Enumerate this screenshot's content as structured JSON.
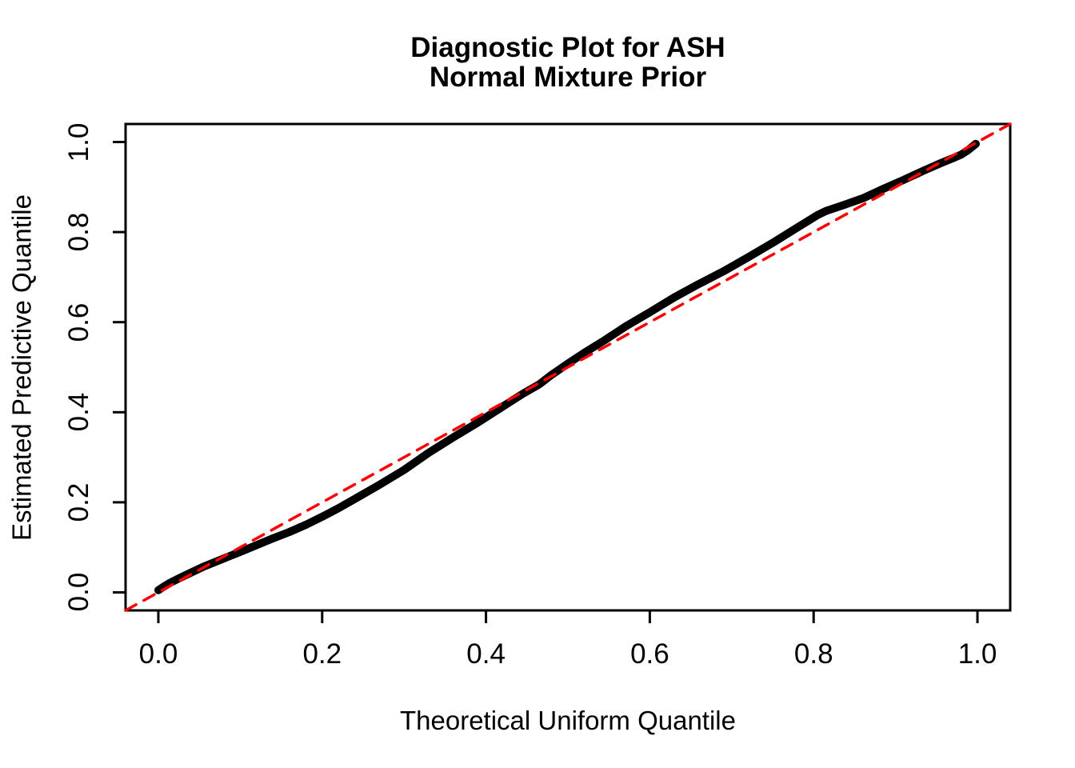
{
  "title": {
    "line1": "Diagnostic Plot for ASH",
    "line2": "Normal Mixture Prior"
  },
  "axes": {
    "x_label": "Theoretical Uniform Quantile",
    "y_label": "Estimated Predictive Quantile"
  },
  "colors": {
    "curve": "#000000",
    "reference_line": "#FF0000",
    "axis": "#000000",
    "background": "#FFFFFF"
  },
  "chart_data": {
    "type": "line",
    "title": "Diagnostic Plot for ASH\nNormal Mixture Prior",
    "xlabel": "Theoretical Uniform Quantile",
    "ylabel": "Estimated Predictive Quantile",
    "xlim": [
      -0.04,
      1.04
    ],
    "ylim": [
      -0.04,
      1.04
    ],
    "grid": false,
    "legend": null,
    "x_ticks": [
      0.0,
      0.2,
      0.4,
      0.6,
      0.8,
      1.0
    ],
    "x_tick_labels": [
      "0.0",
      "0.2",
      "0.4",
      "0.6",
      "0.8",
      "1.0"
    ],
    "y_ticks": [
      0.0,
      0.2,
      0.4,
      0.6,
      0.8,
      1.0
    ],
    "y_tick_labels": [
      "0.0",
      "0.2",
      "0.4",
      "0.6",
      "0.8",
      "1.0"
    ],
    "series": [
      {
        "name": "estimated-predictive-quantile-curve",
        "color": "#000000",
        "dashed": false,
        "points": [
          [
            0.0,
            0.005
          ],
          [
            0.006,
            0.012
          ],
          [
            0.014,
            0.021
          ],
          [
            0.025,
            0.031
          ],
          [
            0.04,
            0.044
          ],
          [
            0.055,
            0.057
          ],
          [
            0.07,
            0.068
          ],
          [
            0.085,
            0.079
          ],
          [
            0.1,
            0.09
          ],
          [
            0.12,
            0.105
          ],
          [
            0.14,
            0.12
          ],
          [
            0.16,
            0.134
          ],
          [
            0.18,
            0.15
          ],
          [
            0.2,
            0.168
          ],
          [
            0.22,
            0.187
          ],
          [
            0.245,
            0.213
          ],
          [
            0.27,
            0.239
          ],
          [
            0.3,
            0.272
          ],
          [
            0.33,
            0.31
          ],
          [
            0.36,
            0.344
          ],
          [
            0.39,
            0.377
          ],
          [
            0.42,
            0.412
          ],
          [
            0.445,
            0.441
          ],
          [
            0.465,
            0.462
          ],
          [
            0.48,
            0.483
          ],
          [
            0.5,
            0.508
          ],
          [
            0.52,
            0.532
          ],
          [
            0.545,
            0.56
          ],
          [
            0.57,
            0.59
          ],
          [
            0.6,
            0.622
          ],
          [
            0.63,
            0.655
          ],
          [
            0.66,
            0.685
          ],
          [
            0.69,
            0.713
          ],
          [
            0.72,
            0.744
          ],
          [
            0.75,
            0.776
          ],
          [
            0.78,
            0.81
          ],
          [
            0.805,
            0.838
          ],
          [
            0.815,
            0.847
          ],
          [
            0.835,
            0.859
          ],
          [
            0.86,
            0.875
          ],
          [
            0.885,
            0.896
          ],
          [
            0.91,
            0.916
          ],
          [
            0.935,
            0.937
          ],
          [
            0.955,
            0.953
          ],
          [
            0.97,
            0.964
          ],
          [
            0.98,
            0.972
          ],
          [
            0.988,
            0.981
          ],
          [
            0.994,
            0.99
          ],
          [
            0.998,
            0.996
          ]
        ]
      },
      {
        "name": "reference-diagonal",
        "color": "#FF0000",
        "dashed": true,
        "points": [
          [
            -0.04,
            -0.04
          ],
          [
            1.04,
            1.04
          ]
        ]
      }
    ]
  }
}
